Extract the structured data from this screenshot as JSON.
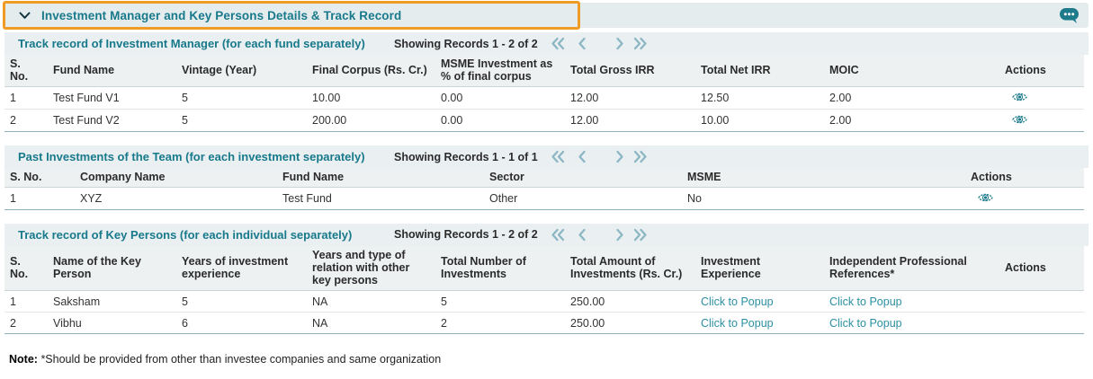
{
  "accordion": {
    "title": "Investment Manager and Key Persons Details & Track Record"
  },
  "colors": {
    "accent_teal": "#18798b",
    "highlight_orange": "#f09b26",
    "link_teal": "#2b8fa3",
    "pager_chevron": "#8cb6c3"
  },
  "sections": [
    {
      "title": "Track record of Investment Manager (for each fund separately)",
      "showing": "Showing Records 1 - 2 of 2",
      "columns": [
        "S. No.",
        "Fund Name",
        "Vintage (Year)",
        "Final Corpus (Rs. Cr.)",
        "MSME Investment as % of final corpus",
        "Total Gross IRR",
        "Total Net IRR",
        "MOIC",
        "Actions"
      ],
      "rows": [
        [
          "1",
          "Test Fund V1",
          "5",
          "10.00",
          "0.00",
          "12.00",
          "12.50",
          "2.00"
        ],
        [
          "2",
          "Test Fund V2",
          "5",
          "200.00",
          "0.00",
          "12.00",
          "10.00",
          "2.00"
        ]
      ],
      "row_action": "view"
    },
    {
      "title": "Past Investments of the Team (for each investment separately)",
      "showing": "Showing Records 1 - 1 of 1",
      "columns": [
        "S. No.",
        "Company Name",
        "Fund Name",
        "Sector",
        "MSME",
        "Actions"
      ],
      "rows": [
        [
          "1",
          "XYZ",
          "Test Fund",
          "Other",
          "No"
        ]
      ],
      "row_action": "view"
    },
    {
      "title": "Track record of Key Persons (for each individual separately)",
      "showing": "Showing Records 1 - 2 of 2",
      "columns": [
        "S. No.",
        "Name of the Key Person",
        "Years of investment experience",
        "Years and type of relation with other key persons",
        "Total Number of Investments",
        "Total Amount of Investments (Rs. Cr.)",
        "Investment Experience",
        "Independent Professional References*",
        "Actions"
      ],
      "rows": [
        [
          "1",
          "Saksham",
          "5",
          "NA",
          "5",
          "250.00",
          "Click to Popup",
          "Click to Popup",
          ""
        ],
        [
          "2",
          "Vibhu",
          "6",
          "NA",
          "2",
          "250.00",
          "Click to Popup",
          "Click to Popup",
          ""
        ]
      ],
      "link_columns": [
        6,
        7
      ],
      "row_action": null
    }
  ],
  "note": {
    "label": "Note:",
    "text": "*Should be provided from other than investee companies and same organization"
  }
}
